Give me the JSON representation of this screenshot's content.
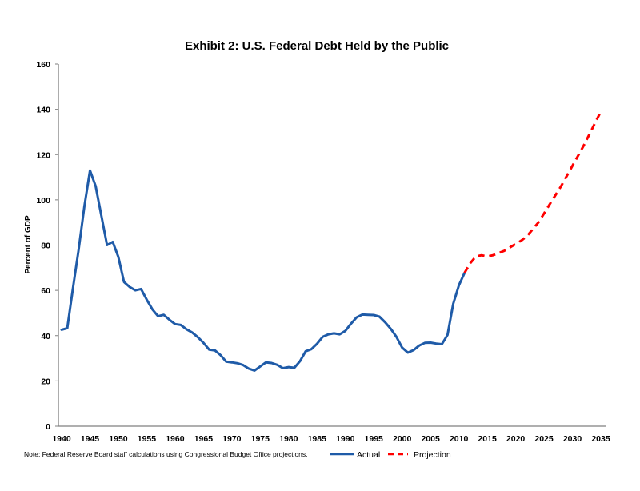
{
  "chart_data": {
    "type": "line",
    "title": "Exhibit 2:  U.S. Federal Debt Held by the Public",
    "xlabel": "",
    "ylabel": "Percent of GDP",
    "xlim": [
      1940,
      2035
    ],
    "ylim": [
      0,
      160
    ],
    "x_ticks": [
      1940,
      1945,
      1950,
      1955,
      1960,
      1965,
      1970,
      1975,
      1980,
      1985,
      1990,
      1995,
      2000,
      2005,
      2010,
      2015,
      2020,
      2025,
      2030,
      2035
    ],
    "y_ticks": [
      0,
      20,
      40,
      60,
      80,
      100,
      120,
      140,
      160
    ],
    "grid": false,
    "legend_position": "bottom-right",
    "note": "Note:  Federal Reserve Board staff calculations using Congressional Budget Office projections.",
    "series": [
      {
        "name": "Actual",
        "color": "#1f5ba8",
        "style": "solid",
        "x": [
          1940,
          1941,
          1942,
          1943,
          1944,
          1945,
          1946,
          1947,
          1948,
          1949,
          1950,
          1951,
          1952,
          1953,
          1954,
          1955,
          1956,
          1957,
          1958,
          1959,
          1960,
          1961,
          1962,
          1963,
          1964,
          1965,
          1966,
          1967,
          1968,
          1969,
          1970,
          1971,
          1972,
          1973,
          1974,
          1975,
          1976,
          1977,
          1978,
          1979,
          1980,
          1981,
          1982,
          1983,
          1984,
          1985,
          1986,
          1987,
          1988,
          1989,
          1990,
          1991,
          1992,
          1993,
          1994,
          1995,
          1996,
          1997,
          1998,
          1999,
          2000,
          2001,
          2002,
          2003,
          2004,
          2005,
          2006,
          2007,
          2008,
          2009,
          2010,
          2011
        ],
        "values": [
          42.6,
          43.3,
          61,
          78,
          97,
          113,
          106,
          93,
          80,
          81.4,
          74.8,
          63.7,
          61.5,
          60,
          60.6,
          55.9,
          51.6,
          48.6,
          49.2,
          47,
          45.1,
          44.7,
          42.8,
          41.4,
          39.3,
          36.8,
          33.8,
          33.5,
          31.4,
          28.5,
          28.2,
          27.8,
          27,
          25.4,
          24.6,
          26.4,
          28.2,
          27.9,
          27.1,
          25.6,
          26.1,
          25.8,
          28.7,
          33.1,
          34,
          36.4,
          39.5,
          40.6,
          41,
          40.6,
          42.1,
          45.3,
          48.1,
          49.3,
          49.2,
          49.1,
          48.4,
          45.9,
          43,
          39.4,
          34.7,
          32.5,
          33.6,
          35.6,
          36.8,
          36.9,
          36.5,
          36.2,
          40.3,
          54,
          62.2,
          67.7
        ]
      },
      {
        "name": "Projection",
        "color": "#ff0000",
        "style": "dashed",
        "x": [
          2011,
          2012,
          2013,
          2014,
          2015,
          2016,
          2017,
          2018,
          2019,
          2020,
          2021,
          2022,
          2023,
          2024,
          2025,
          2026,
          2027,
          2028,
          2029,
          2030,
          2031,
          2032,
          2033,
          2034,
          2035
        ],
        "values": [
          67.7,
          72,
          75,
          75.5,
          75,
          75.5,
          76.5,
          77.5,
          79,
          80.5,
          82,
          84,
          87,
          90,
          94,
          98,
          102,
          106,
          110.5,
          115,
          119.5,
          124,
          129,
          134,
          139
        ]
      }
    ]
  }
}
